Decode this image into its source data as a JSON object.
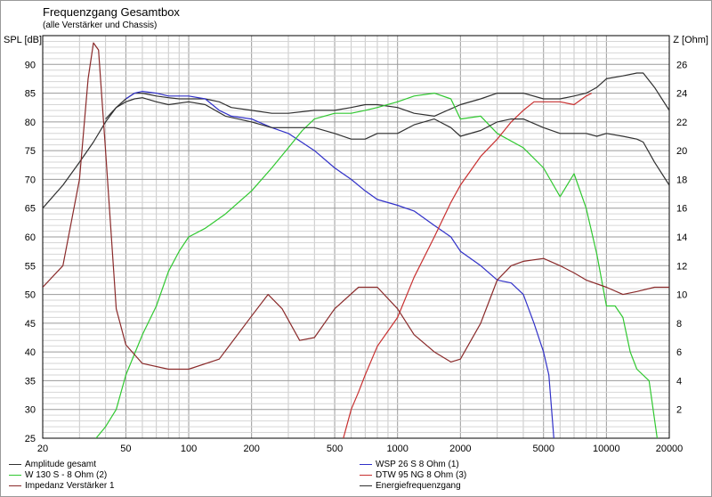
{
  "title": "Frequenzgang Gesamtbox",
  "subtitle": "(alle Verstärker und Chassis)",
  "chart_data": {
    "type": "line",
    "xscale": "log",
    "xlim": [
      20,
      20000
    ],
    "ylim": [
      25,
      95
    ],
    "y2lim": [
      0,
      28
    ],
    "ylabel": "SPL [dB]",
    "y2label": "Z [Ohm]",
    "x_ticks": [
      20,
      50,
      100,
      200,
      500,
      1000,
      2000,
      5000,
      10000,
      20000
    ],
    "x_tick_labels": [
      "20",
      "50",
      "100",
      "200",
      "500",
      "1000",
      "2000",
      "5000",
      "10000",
      "20000"
    ],
    "y_ticks": [
      25,
      30,
      35,
      40,
      45,
      50,
      55,
      60,
      65,
      70,
      75,
      80,
      85,
      90
    ],
    "y2_ticks": [
      2,
      4,
      6,
      8,
      10,
      12,
      14,
      16,
      18,
      20,
      22,
      24,
      26
    ],
    "grid": true,
    "legend_position": "bottom",
    "series": [
      {
        "name": "Amplitude gesamt",
        "color": "#303030",
        "axis": "left",
        "points": [
          [
            20,
            65
          ],
          [
            25,
            69
          ],
          [
            30,
            73
          ],
          [
            35,
            76.5
          ],
          [
            40,
            80
          ],
          [
            45,
            82.5
          ],
          [
            50,
            84
          ],
          [
            55,
            85
          ],
          [
            60,
            85
          ],
          [
            70,
            84.5
          ],
          [
            80,
            84.2
          ],
          [
            90,
            84
          ],
          [
            100,
            84
          ],
          [
            120,
            84
          ],
          [
            140,
            83.5
          ],
          [
            160,
            82.5
          ],
          [
            200,
            82
          ],
          [
            250,
            81.5
          ],
          [
            300,
            81.5
          ],
          [
            400,
            82
          ],
          [
            500,
            82
          ],
          [
            600,
            82.5
          ],
          [
            700,
            83
          ],
          [
            800,
            83
          ],
          [
            1000,
            82.5
          ],
          [
            1200,
            81.5
          ],
          [
            1500,
            81
          ],
          [
            2000,
            83
          ],
          [
            2500,
            84
          ],
          [
            3000,
            85
          ],
          [
            4000,
            85
          ],
          [
            5000,
            84
          ],
          [
            6000,
            84
          ],
          [
            7000,
            84.5
          ],
          [
            8000,
            85
          ],
          [
            9000,
            86
          ],
          [
            10000,
            87.5
          ],
          [
            12000,
            88
          ],
          [
            14000,
            88.5
          ],
          [
            15000,
            88.5
          ],
          [
            17000,
            86
          ],
          [
            20000,
            82
          ]
        ]
      },
      {
        "name": "WSP 26 S 8 Ohm (1)",
        "color": "#3030c8",
        "axis": "left",
        "points": [
          [
            50,
            84
          ],
          [
            55,
            85
          ],
          [
            60,
            85.3
          ],
          [
            70,
            85
          ],
          [
            80,
            84.5
          ],
          [
            100,
            84.5
          ],
          [
            120,
            84
          ],
          [
            140,
            82
          ],
          [
            160,
            81
          ],
          [
            200,
            80.5
          ],
          [
            250,
            79
          ],
          [
            300,
            78
          ],
          [
            400,
            75
          ],
          [
            500,
            72
          ],
          [
            600,
            70
          ],
          [
            700,
            68
          ],
          [
            800,
            66.5
          ],
          [
            1000,
            65.5
          ],
          [
            1200,
            64.5
          ],
          [
            1500,
            62
          ],
          [
            1800,
            60
          ],
          [
            2000,
            57.5
          ],
          [
            2500,
            55
          ],
          [
            3000,
            52.5
          ],
          [
            3500,
            52
          ],
          [
            4000,
            50
          ],
          [
            4500,
            45
          ],
          [
            5000,
            40
          ],
          [
            5300,
            36
          ],
          [
            5600,
            25
          ]
        ]
      },
      {
        "name": "W 130 S - 8 Ohm (2)",
        "color": "#30c830",
        "axis": "left",
        "points": [
          [
            36,
            25
          ],
          [
            40,
            27
          ],
          [
            45,
            30
          ],
          [
            50,
            36
          ],
          [
            60,
            43
          ],
          [
            70,
            48
          ],
          [
            80,
            54
          ],
          [
            90,
            57.5
          ],
          [
            100,
            60
          ],
          [
            120,
            61.5
          ],
          [
            150,
            64
          ],
          [
            200,
            68
          ],
          [
            250,
            72
          ],
          [
            300,
            75.5
          ],
          [
            350,
            78.5
          ],
          [
            400,
            80.5
          ],
          [
            500,
            81.5
          ],
          [
            600,
            81.5
          ],
          [
            700,
            82
          ],
          [
            800,
            82.5
          ],
          [
            1000,
            83.5
          ],
          [
            1200,
            84.5
          ],
          [
            1500,
            85
          ],
          [
            1800,
            84
          ],
          [
            2000,
            80.5
          ],
          [
            2500,
            81
          ],
          [
            3000,
            78
          ],
          [
            4000,
            75.5
          ],
          [
            5000,
            72
          ],
          [
            6000,
            67
          ],
          [
            7000,
            71
          ],
          [
            8000,
            65
          ],
          [
            9000,
            57
          ],
          [
            10000,
            48
          ],
          [
            11000,
            48
          ],
          [
            12000,
            46
          ],
          [
            13000,
            40
          ],
          [
            14000,
            37
          ],
          [
            16000,
            35
          ],
          [
            17500,
            25
          ]
        ]
      },
      {
        "name": "DTW 95 NG 8 Ohm (3)",
        "color": "#c83030",
        "axis": "left",
        "points": [
          [
            550,
            25
          ],
          [
            600,
            30
          ],
          [
            650,
            33
          ],
          [
            700,
            36
          ],
          [
            800,
            41
          ],
          [
            1000,
            46
          ],
          [
            1200,
            53
          ],
          [
            1500,
            60
          ],
          [
            1800,
            66
          ],
          [
            2000,
            69
          ],
          [
            2500,
            74
          ],
          [
            3000,
            77
          ],
          [
            3500,
            80
          ],
          [
            4000,
            82
          ],
          [
            4500,
            83.5
          ],
          [
            5000,
            83.5
          ],
          [
            6000,
            83.5
          ],
          [
            7000,
            83
          ],
          [
            8000,
            84.5
          ],
          [
            8500,
            85
          ]
        ]
      },
      {
        "name": "Impedanz Verstärker 1",
        "color": "#8a2a2a",
        "axis": "right",
        "points": [
          [
            20,
            10.5
          ],
          [
            25,
            12
          ],
          [
            30,
            18
          ],
          [
            33,
            25
          ],
          [
            35,
            27.5
          ],
          [
            37,
            27
          ],
          [
            40,
            20
          ],
          [
            45,
            9
          ],
          [
            50,
            6.5
          ],
          [
            60,
            5.2
          ],
          [
            80,
            4.8
          ],
          [
            100,
            4.8
          ],
          [
            140,
            5.5
          ],
          [
            200,
            8.5
          ],
          [
            240,
            10
          ],
          [
            280,
            9
          ],
          [
            340,
            6.8
          ],
          [
            400,
            7
          ],
          [
            500,
            9
          ],
          [
            650,
            10.5
          ],
          [
            800,
            10.5
          ],
          [
            1000,
            9
          ],
          [
            1200,
            7.2
          ],
          [
            1500,
            6
          ],
          [
            1800,
            5.3
          ],
          [
            2000,
            5.5
          ],
          [
            2500,
            8
          ],
          [
            3000,
            11
          ],
          [
            3500,
            12
          ],
          [
            4000,
            12.3
          ],
          [
            5000,
            12.5
          ],
          [
            6000,
            12
          ],
          [
            7000,
            11.5
          ],
          [
            8000,
            11
          ],
          [
            10000,
            10.5
          ],
          [
            12000,
            10
          ],
          [
            14000,
            10.2
          ],
          [
            17000,
            10.5
          ],
          [
            20000,
            10.5
          ]
        ]
      },
      {
        "name": "Energiefrequenzgang",
        "color": "#303030",
        "axis": "left",
        "points": [
          [
            40,
            80.5
          ],
          [
            45,
            82.5
          ],
          [
            50,
            83.5
          ],
          [
            55,
            84
          ],
          [
            60,
            84.2
          ],
          [
            70,
            83.5
          ],
          [
            80,
            83
          ],
          [
            100,
            83.5
          ],
          [
            120,
            83
          ],
          [
            150,
            81
          ],
          [
            200,
            80
          ],
          [
            250,
            79
          ],
          [
            300,
            79
          ],
          [
            400,
            79
          ],
          [
            500,
            78
          ],
          [
            600,
            77
          ],
          [
            700,
            77
          ],
          [
            800,
            78
          ],
          [
            1000,
            78
          ],
          [
            1200,
            79.5
          ],
          [
            1500,
            80.5
          ],
          [
            1800,
            79
          ],
          [
            2000,
            77.5
          ],
          [
            2500,
            78.5
          ],
          [
            3000,
            80
          ],
          [
            3500,
            80.5
          ],
          [
            4000,
            80.5
          ],
          [
            5000,
            79
          ],
          [
            6000,
            78
          ],
          [
            7000,
            78
          ],
          [
            8000,
            78
          ],
          [
            9000,
            77.5
          ],
          [
            10000,
            78
          ],
          [
            12000,
            77.5
          ],
          [
            14000,
            77
          ],
          [
            15000,
            76.5
          ],
          [
            17000,
            73
          ],
          [
            20000,
            69
          ]
        ]
      }
    ]
  },
  "legend": [
    {
      "label": "Amplitude gesamt"
    },
    {
      "label": "WSP 26 S 8 Ohm (1)"
    },
    {
      "label": "W 130 S - 8 Ohm (2)"
    },
    {
      "label": "DTW 95 NG 8 Ohm (3)"
    },
    {
      "label": "Impedanz Verstärker 1"
    },
    {
      "label": "Energiefrequenzgang"
    }
  ]
}
